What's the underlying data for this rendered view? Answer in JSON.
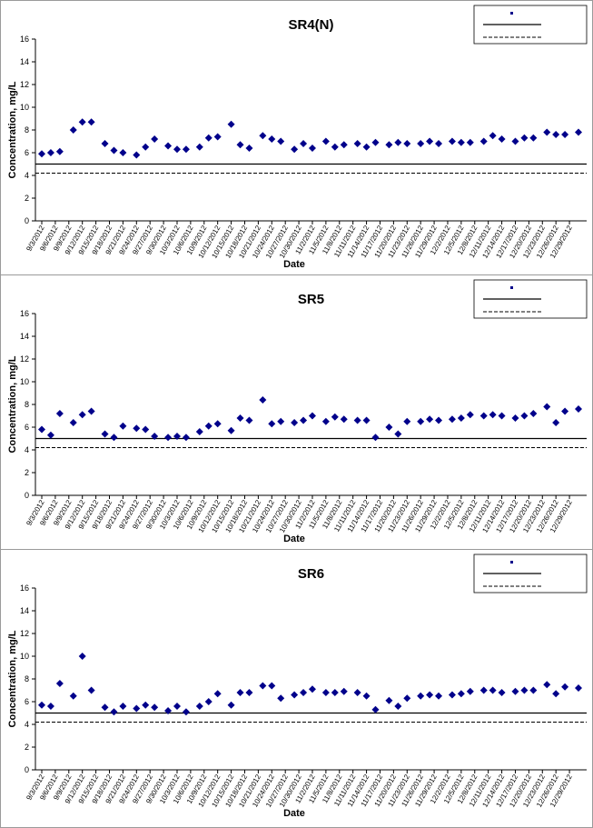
{
  "chart_data": [
    {
      "type": "scatter",
      "title": "SR4(N)",
      "xlabel": "Date",
      "ylabel": "Concentration, mg/L",
      "ylim": [
        0,
        16
      ],
      "yticks": [
        "0",
        "2",
        "4",
        "6",
        "8",
        "10",
        "12",
        "14",
        "16"
      ],
      "xticks": [
        "9/3/2012",
        "9/6/2012",
        "9/9/2012",
        "9/12/2012",
        "9/15/2012",
        "9/18/2012",
        "9/21/2012",
        "9/24/2012",
        "9/27/2012",
        "9/30/2012",
        "10/3/2012",
        "10/6/2012",
        "10/9/2012",
        "10/12/2012",
        "10/15/2012",
        "10/18/2012",
        "10/21/2012",
        "10/24/2012",
        "10/27/2012",
        "10/30/2012",
        "11/2/2012",
        "11/5/2012",
        "11/8/2012",
        "11/11/2012",
        "11/14/2012",
        "11/17/2012",
        "11/20/2012",
        "11/23/2012",
        "11/26/2012",
        "11/29/2012",
        "12/2/2012",
        "12/5/2012",
        "12/8/2012",
        "12/11/2012",
        "12/14/2012",
        "12/17/2012",
        "12/20/2012",
        "12/23/2012",
        "12/26/2012",
        "12/29/2012"
      ],
      "reference_lines": [
        {
          "value": 5.0,
          "style": "solid",
          "color": "#000000"
        },
        {
          "value": 4.2,
          "style": "dashed",
          "color": "#000000"
        }
      ],
      "legend": {
        "position": "top-right",
        "entries": [
          "",
          "",
          ""
        ]
      },
      "series": [
        {
          "color": "#00008B",
          "x": [
            "9/3/2012",
            "9/5/2012",
            "9/7/2012",
            "9/10/2012",
            "9/12/2012",
            "9/14/2012",
            "9/17/2012",
            "9/19/2012",
            "9/21/2012",
            "9/24/2012",
            "9/26/2012",
            "9/28/2012",
            "10/1/2012",
            "10/3/2012",
            "10/5/2012",
            "10/8/2012",
            "10/10/2012",
            "10/12/2012",
            "10/15/2012",
            "10/17/2012",
            "10/19/2012",
            "10/22/2012",
            "10/24/2012",
            "10/26/2012",
            "10/29/2012",
            "10/31/2012",
            "11/2/2012",
            "11/5/2012",
            "11/7/2012",
            "11/9/2012",
            "11/12/2012",
            "11/14/2012",
            "11/16/2012",
            "11/19/2012",
            "11/21/2012",
            "11/23/2012",
            "11/26/2012",
            "11/28/2012",
            "11/30/2012",
            "12/3/2012",
            "12/5/2012",
            "12/7/2012",
            "12/10/2012",
            "12/12/2012",
            "12/14/2012",
            "12/17/2012",
            "12/19/2012",
            "12/21/2012",
            "12/24/2012",
            "12/26/2012",
            "12/28/2012",
            "12/31/2012"
          ],
          "y": [
            5.9,
            6.0,
            6.1,
            8.0,
            8.7,
            8.7,
            6.8,
            6.2,
            6.0,
            5.8,
            6.5,
            7.2,
            6.6,
            6.3,
            6.3,
            6.5,
            7.3,
            7.4,
            8.5,
            6.7,
            6.4,
            7.5,
            7.2,
            7.0,
            6.3,
            6.8,
            6.4,
            7.0,
            6.5,
            6.7,
            6.8,
            6.5,
            6.9,
            6.7,
            6.9,
            6.8,
            6.8,
            7.0,
            6.8,
            7.0,
            6.9,
            6.9,
            7.0,
            7.5,
            7.2,
            7.0,
            7.3,
            7.3,
            7.8,
            7.6,
            7.6,
            7.8
          ]
        }
      ]
    },
    {
      "type": "scatter",
      "title": "SR5",
      "xlabel": "Date",
      "ylabel": "Concentration, mg/L",
      "ylim": [
        0,
        16
      ],
      "yticks": [
        "0",
        "2",
        "4",
        "6",
        "8",
        "10",
        "12",
        "14",
        "16"
      ],
      "xticks": [
        "9/3/2012",
        "9/6/2012",
        "9/9/2012",
        "9/12/2012",
        "9/15/2012",
        "9/18/2012",
        "9/21/2012",
        "9/24/2012",
        "9/27/2012",
        "9/30/2012",
        "10/3/2012",
        "10/6/2012",
        "10/9/2012",
        "10/12/2012",
        "10/15/2012",
        "10/18/2012",
        "10/21/2012",
        "10/24/2012",
        "10/27/2012",
        "10/30/2012",
        "11/2/2012",
        "11/5/2012",
        "11/8/2012",
        "11/11/2012",
        "11/14/2012",
        "11/17/2012",
        "11/20/2012",
        "11/23/2012",
        "11/26/2012",
        "11/29/2012",
        "12/2/2012",
        "12/5/2012",
        "12/8/2012",
        "12/11/2012",
        "12/14/2012",
        "12/17/2012",
        "12/20/2012",
        "12/23/2012",
        "12/26/2012",
        "12/29/2012"
      ],
      "reference_lines": [
        {
          "value": 5.0,
          "style": "solid",
          "color": "#000000"
        },
        {
          "value": 4.2,
          "style": "dashed",
          "color": "#000000"
        }
      ],
      "legend": {
        "position": "top-right",
        "entries": [
          "",
          "",
          ""
        ]
      },
      "series": [
        {
          "color": "#00008B",
          "x": [
            "9/3/2012",
            "9/5/2012",
            "9/7/2012",
            "9/10/2012",
            "9/12/2012",
            "9/14/2012",
            "9/17/2012",
            "9/19/2012",
            "9/21/2012",
            "9/24/2012",
            "9/26/2012",
            "9/28/2012",
            "10/1/2012",
            "10/3/2012",
            "10/5/2012",
            "10/8/2012",
            "10/10/2012",
            "10/12/2012",
            "10/15/2012",
            "10/17/2012",
            "10/19/2012",
            "10/22/2012",
            "10/24/2012",
            "10/26/2012",
            "10/29/2012",
            "10/31/2012",
            "11/2/2012",
            "11/5/2012",
            "11/7/2012",
            "11/9/2012",
            "11/12/2012",
            "11/14/2012",
            "11/16/2012",
            "11/19/2012",
            "11/21/2012",
            "11/23/2012",
            "11/26/2012",
            "11/28/2012",
            "11/30/2012",
            "12/3/2012",
            "12/5/2012",
            "12/7/2012",
            "12/10/2012",
            "12/12/2012",
            "12/14/2012",
            "12/17/2012",
            "12/19/2012",
            "12/21/2012",
            "12/24/2012",
            "12/26/2012",
            "12/28/2012",
            "12/31/2012"
          ],
          "y": [
            5.8,
            5.3,
            7.2,
            6.4,
            7.1,
            7.4,
            5.4,
            5.1,
            6.1,
            5.9,
            5.8,
            5.2,
            5.1,
            5.2,
            5.1,
            5.6,
            6.1,
            6.3,
            5.7,
            6.8,
            6.6,
            8.4,
            6.3,
            6.5,
            6.4,
            6.6,
            7.0,
            6.5,
            6.9,
            6.7,
            6.6,
            6.6,
            5.1,
            6.0,
            5.4,
            6.5,
            6.5,
            6.7,
            6.6,
            6.7,
            6.8,
            7.1,
            7.0,
            7.1,
            7.0,
            6.8,
            7.0,
            7.2,
            7.8,
            6.4,
            7.4,
            7.6
          ]
        }
      ]
    },
    {
      "type": "scatter",
      "title": "SR6",
      "xlabel": "Date",
      "ylabel": "Concentration, mg/L",
      "ylim": [
        0,
        16
      ],
      "yticks": [
        "0",
        "2",
        "4",
        "6",
        "8",
        "10",
        "12",
        "14",
        "16"
      ],
      "xticks": [
        "9/3/2012",
        "9/6/2012",
        "9/9/2012",
        "9/12/2012",
        "9/15/2012",
        "9/18/2012",
        "9/21/2012",
        "9/24/2012",
        "9/27/2012",
        "9/30/2012",
        "10/3/2012",
        "10/6/2012",
        "10/9/2012",
        "10/12/2012",
        "10/15/2012",
        "10/18/2012",
        "10/21/2012",
        "10/24/2012",
        "10/27/2012",
        "10/30/2012",
        "11/2/2012",
        "11/5/2012",
        "11/8/2012",
        "11/11/2012",
        "11/14/2012",
        "11/17/2012",
        "11/20/2012",
        "11/23/2012",
        "11/26/2012",
        "11/29/2012",
        "12/2/2012",
        "12/5/2012",
        "12/8/2012",
        "12/11/2012",
        "12/14/2012",
        "12/17/2012",
        "12/20/2012",
        "12/23/2012",
        "12/26/2012",
        "12/29/2012"
      ],
      "reference_lines": [
        {
          "value": 5.0,
          "style": "solid",
          "color": "#000000"
        },
        {
          "value": 4.2,
          "style": "dashed",
          "color": "#000000"
        }
      ],
      "legend": {
        "position": "top-right",
        "entries": [
          "",
          "",
          ""
        ]
      },
      "series": [
        {
          "color": "#00008B",
          "x": [
            "9/3/2012",
            "9/5/2012",
            "9/7/2012",
            "9/10/2012",
            "9/12/2012",
            "9/14/2012",
            "9/17/2012",
            "9/19/2012",
            "9/21/2012",
            "9/24/2012",
            "9/26/2012",
            "9/28/2012",
            "10/1/2012",
            "10/3/2012",
            "10/5/2012",
            "10/8/2012",
            "10/10/2012",
            "10/12/2012",
            "10/15/2012",
            "10/17/2012",
            "10/19/2012",
            "10/22/2012",
            "10/24/2012",
            "10/26/2012",
            "10/29/2012",
            "10/31/2012",
            "11/2/2012",
            "11/5/2012",
            "11/7/2012",
            "11/9/2012",
            "11/12/2012",
            "11/14/2012",
            "11/16/2012",
            "11/19/2012",
            "11/21/2012",
            "11/23/2012",
            "11/26/2012",
            "11/28/2012",
            "11/30/2012",
            "12/3/2012",
            "12/5/2012",
            "12/7/2012",
            "12/10/2012",
            "12/12/2012",
            "12/14/2012",
            "12/17/2012",
            "12/19/2012",
            "12/21/2012",
            "12/24/2012",
            "12/26/2012",
            "12/28/2012",
            "12/31/2012"
          ],
          "y": [
            5.7,
            5.6,
            7.6,
            6.5,
            10.0,
            7.0,
            5.5,
            5.1,
            5.6,
            5.4,
            5.7,
            5.5,
            5.2,
            5.6,
            5.1,
            5.6,
            6.0,
            6.7,
            5.7,
            6.8,
            6.8,
            7.4,
            7.4,
            6.3,
            6.6,
            6.8,
            7.1,
            6.8,
            6.8,
            6.9,
            6.8,
            6.5,
            5.3,
            6.1,
            5.6,
            6.3,
            6.5,
            6.6,
            6.5,
            6.6,
            6.7,
            6.9,
            7.0,
            7.0,
            6.8,
            6.9,
            7.0,
            7.0,
            7.5,
            6.7,
            7.3,
            7.2
          ]
        }
      ]
    }
  ]
}
